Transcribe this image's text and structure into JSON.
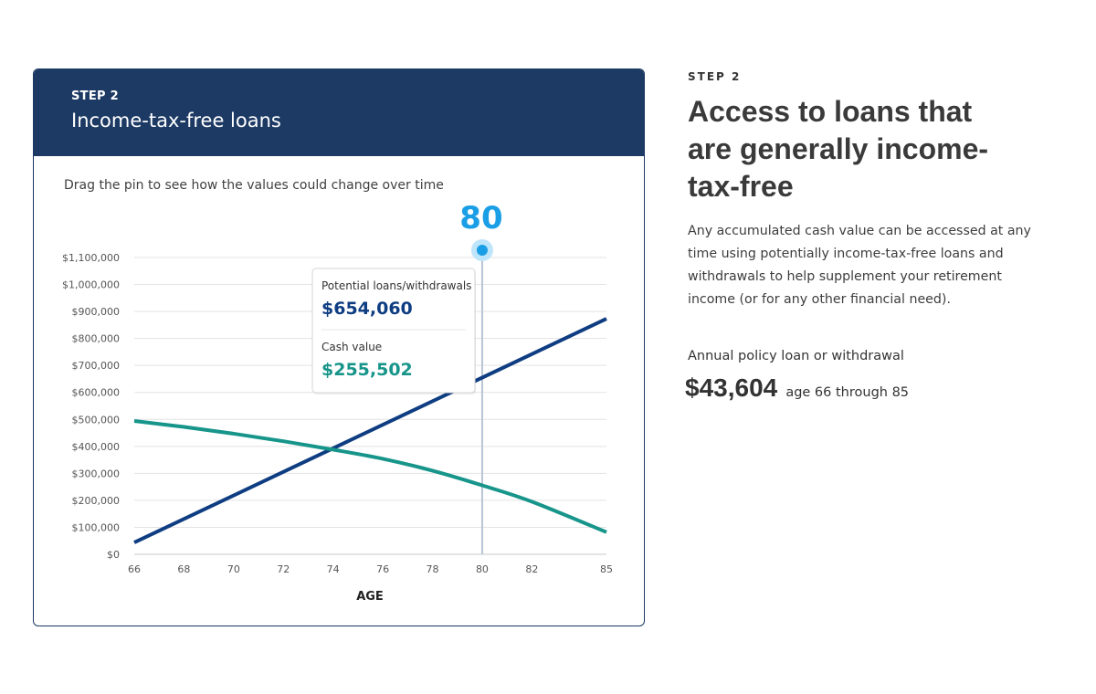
{
  "card": {
    "step_label": "STEP 2",
    "title": "Income-tax-free loans",
    "instruction": "Drag the pin to see how the values could change over time"
  },
  "pin": {
    "age_display": "80",
    "age": 80
  },
  "tooltip": {
    "loans_label": "Potential loans/withdrawals",
    "loans_value": "$654,060",
    "cash_label": "Cash value",
    "cash_value": "$255,502"
  },
  "colors": {
    "header_bg": "#1d3a64",
    "loans": "#0f3d82",
    "cash": "#17958a",
    "pin": "#1a9fe6"
  },
  "chart_data": {
    "type": "line",
    "xlabel": "AGE",
    "ylabel": "",
    "xlim": [
      66,
      85
    ],
    "ylim": [
      0,
      1100000
    ],
    "x_ticks": [
      66,
      68,
      70,
      72,
      74,
      76,
      78,
      80,
      82,
      85
    ],
    "x_tick_labels": [
      "66",
      "68",
      "70",
      "72",
      "74",
      "76",
      "78",
      "80",
      "82",
      "85"
    ],
    "y_ticks": [
      0,
      100000,
      200000,
      300000,
      400000,
      500000,
      600000,
      700000,
      800000,
      900000,
      1000000,
      1100000
    ],
    "y_tick_labels": [
      "$0",
      "$100,000",
      "$200,000",
      "$300,000",
      "$400,000",
      "$500,000",
      "$600,000",
      "$700,000",
      "$800,000",
      "$900,000",
      "$1,000,000",
      "$1,100,000"
    ],
    "grid": true,
    "series": [
      {
        "name": "Potential loans/withdrawals",
        "x": [
          66,
          85
        ],
        "values": [
          43604,
          873000
        ]
      },
      {
        "name": "Cash value",
        "x": [
          66,
          68,
          70,
          72,
          74,
          76,
          78,
          80,
          82,
          85
        ],
        "values": [
          494000,
          472000,
          447000,
          419000,
          388000,
          354000,
          310000,
          255502,
          195000,
          82000
        ]
      }
    ]
  },
  "right": {
    "step_label": "STEP 2",
    "heading_line1": "Access to loans that",
    "heading_line2": "are generally income-",
    "heading_line3": "tax-free",
    "body": "Any accumulated cash value can be accessed at any time using potentially income-tax-free loans and withdrawals to help supplement your retirement income (or for any other financial need).",
    "annual_label": "Annual policy loan or withdrawal",
    "annual_amount": "$43,604",
    "annual_range": "age 66 through 85"
  }
}
